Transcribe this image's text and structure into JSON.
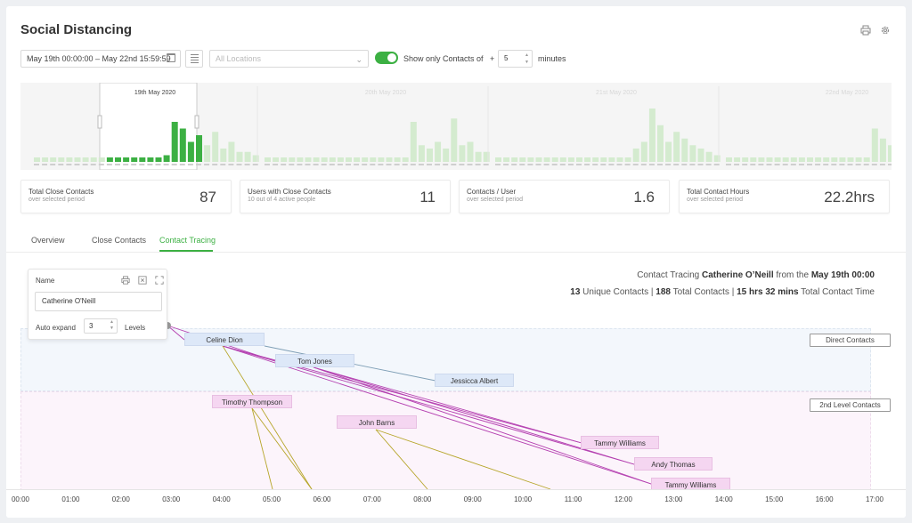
{
  "header": {
    "title": "Social Distancing",
    "print_icon": "printer-icon",
    "settings_icon": "gear-icon"
  },
  "filters": {
    "date_range": "May 19th 00:00:00  – May 22nd 15:59:59",
    "location_placeholder": "All Locations",
    "show_only_label": "Show only Contacts of",
    "plus": "+",
    "minutes_value": "5",
    "minutes_label": "minutes",
    "toggle_on": true
  },
  "timeline": {
    "day_labels": [
      "19th May 2020",
      "20th May 2020",
      "21st May 2020",
      "22nd May 2020"
    ],
    "selected_day_index": 0,
    "day_bar_counts": [
      [
        1,
        1,
        1,
        1,
        1,
        1,
        1,
        1,
        1,
        1,
        1,
        1,
        1,
        1,
        1,
        1,
        2,
        12,
        10,
        6,
        8,
        5,
        9,
        4,
        6,
        3,
        3,
        2
      ],
      [
        1,
        1,
        1,
        1,
        1,
        1,
        1,
        1,
        1,
        1,
        1,
        1,
        1,
        1,
        1,
        1,
        1,
        1,
        12,
        5,
        4,
        6,
        4,
        13,
        5,
        6,
        3,
        3
      ],
      [
        1,
        1,
        1,
        1,
        1,
        1,
        1,
        1,
        1,
        1,
        1,
        1,
        1,
        1,
        1,
        1,
        1,
        4,
        6,
        16,
        11,
        6,
        9,
        7,
        5,
        4,
        3,
        2
      ],
      [
        1,
        1,
        1,
        1,
        1,
        1,
        1,
        1,
        1,
        1,
        1,
        1,
        1,
        1,
        1,
        1,
        1,
        1,
        10,
        7,
        5,
        4,
        9,
        4,
        10,
        6,
        3,
        2
      ]
    ]
  },
  "stats": [
    {
      "title": "Total Close Contacts",
      "sub": "over selected period",
      "value": "87"
    },
    {
      "title": "Users with Close Contacts",
      "sub": "10 out of 4 active people",
      "value": "11"
    },
    {
      "title": "Contacts / User",
      "sub": "over selected period",
      "value": "1.6"
    },
    {
      "title": "Total Contact Hours",
      "sub": "over selected period",
      "value": "22.2hrs"
    }
  ],
  "tabs": [
    {
      "label": "Overview"
    },
    {
      "label": "Close Contacts"
    },
    {
      "label": "Contact Tracing"
    }
  ],
  "active_tab_index": 2,
  "tracing_panel": {
    "name_label": "Name",
    "name_value": "Catherine O'Neill",
    "auto_expand_label": "Auto expand",
    "auto_expand_value": "3",
    "levels_label": "Levels"
  },
  "summary": {
    "prefix": "Contact Tracing ",
    "person": "Catherine O’Neill",
    "from": " from the ",
    "date": "May 19th 00:00",
    "unique_count": "13",
    "unique_label": " Unique Contacts | ",
    "total_count": "188",
    "total_label": " Total Contacts | ",
    "time": "15 hrs 32 mins",
    "time_label": " Total Contact Time"
  },
  "bands": {
    "direct_label": "Direct Contacts",
    "second_label": "2nd Level Contacts"
  },
  "nodes": {
    "direct": [
      "Celine Dion",
      "Tom Jones",
      "Jessicca Albert"
    ],
    "second": [
      "Timothy Thompson",
      "John Barns",
      "Tammy Williams",
      "Andy Thomas",
      "Tammy Williams"
    ]
  },
  "axis": {
    "ticks": [
      "00:00",
      "01:00",
      "02:00",
      "03:00",
      "04:00",
      "05:00",
      "06:00",
      "07:00",
      "08:00",
      "09:00",
      "10:00",
      "11:00",
      "12:00",
      "13:00",
      "14:00",
      "15:00",
      "16:00",
      "17:00"
    ]
  },
  "colors": {
    "accent": "#3cb043",
    "bar_selected": "#3cb043",
    "bar_unselected": "#d4ebcf",
    "direct_band": "#f3f7fc",
    "second_band": "#fcf4fb",
    "direct_node": "#dde8f8",
    "second_node": "#f5d6f1",
    "link_purple": "#b43fb0",
    "link_olive": "#b6a529",
    "link_blue": "#7f9fb6"
  }
}
